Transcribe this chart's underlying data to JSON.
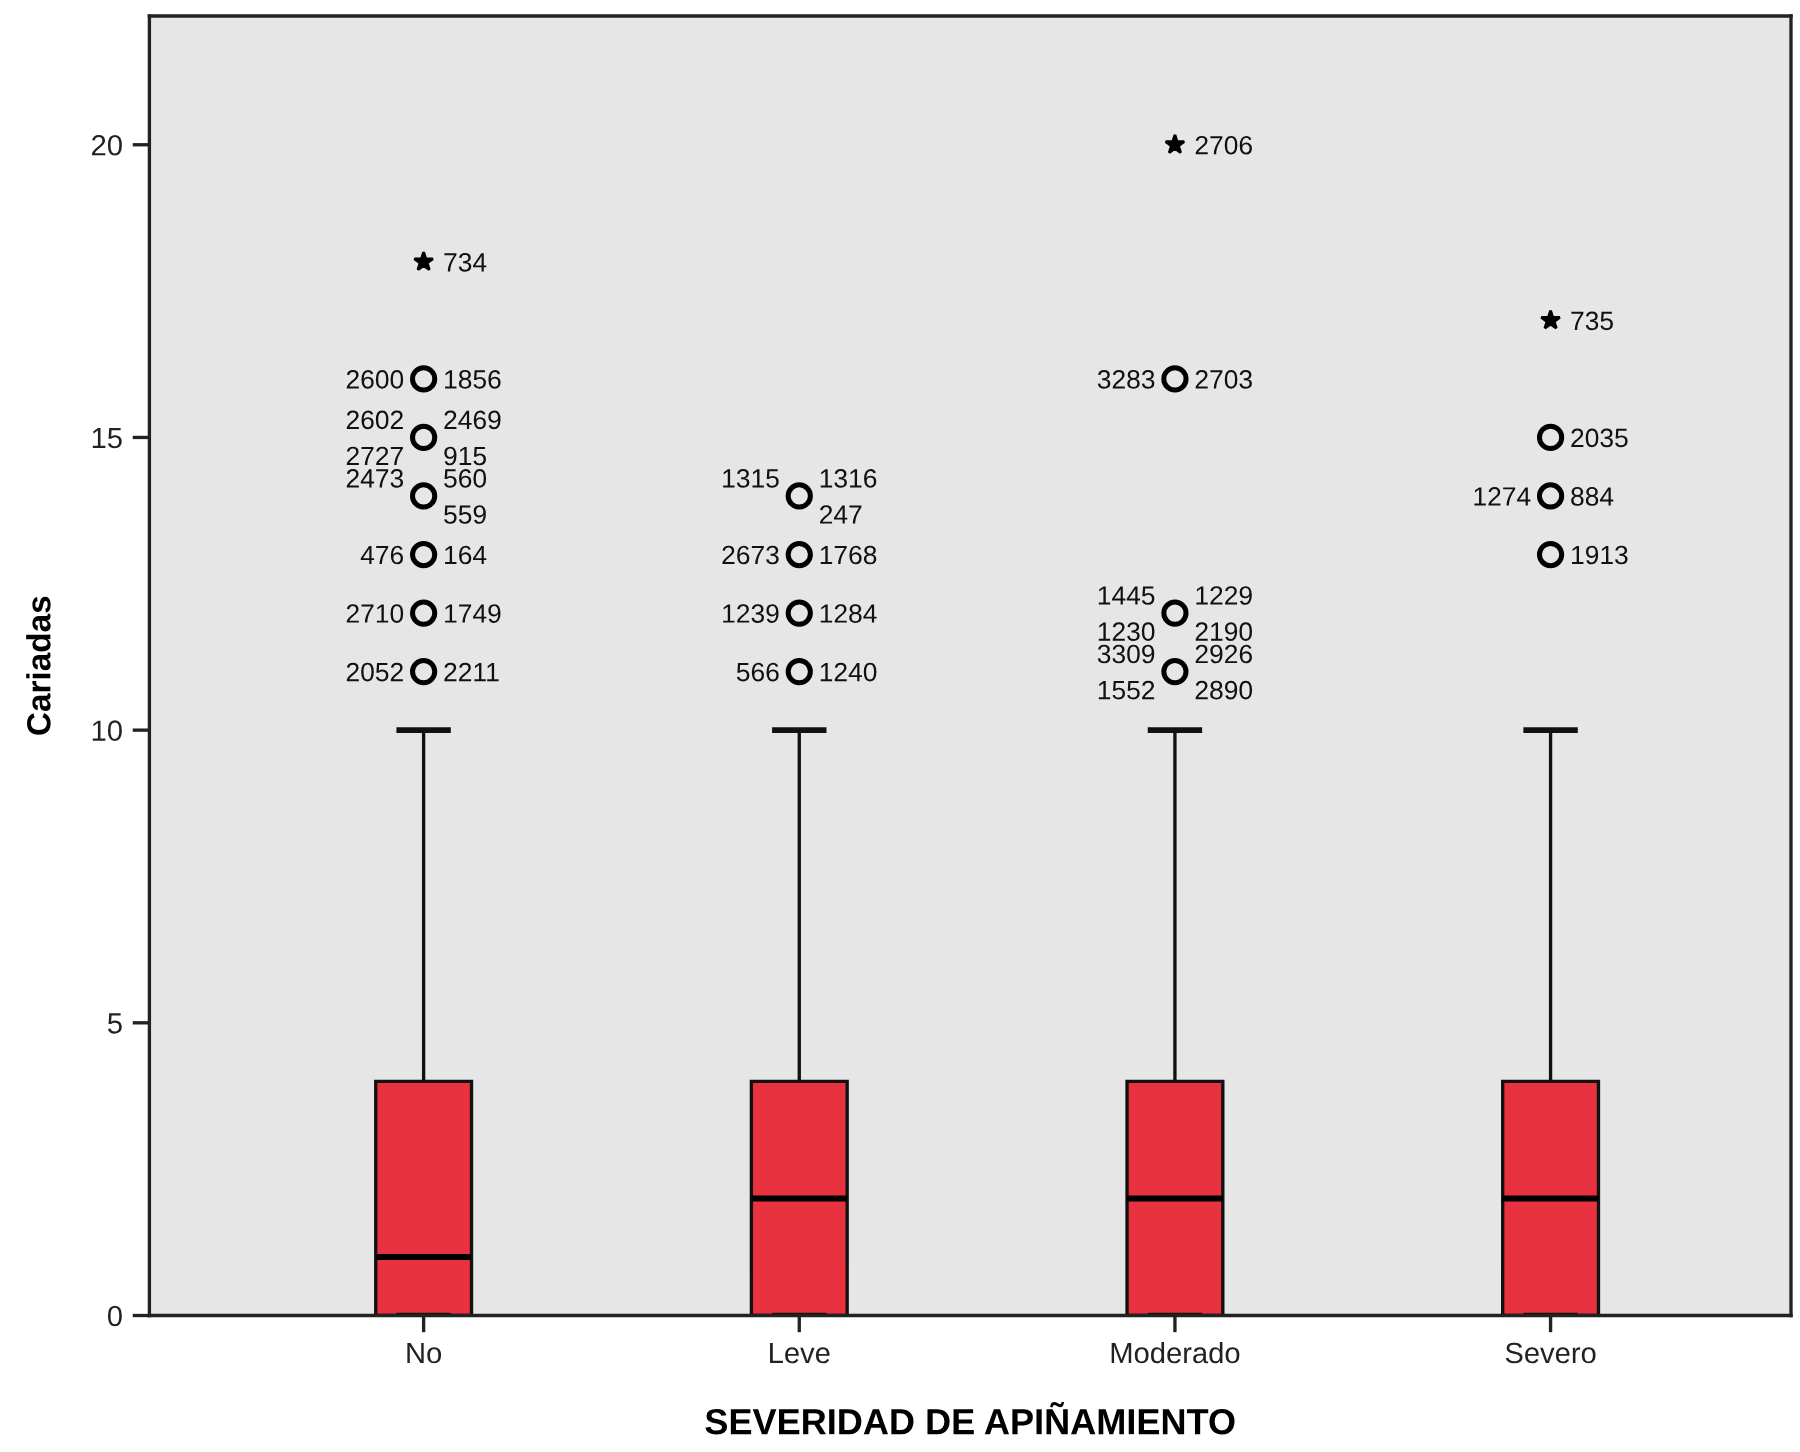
{
  "chart_data": {
    "type": "box",
    "xlabel": "SEVERIDAD DE APIÑAMIENTO",
    "ylabel": "Cariadas",
    "categories": [
      "No",
      "Leve",
      "Moderado",
      "Severo"
    ],
    "ylim": [
      0,
      22.2
    ],
    "yticks": [
      0,
      5,
      10,
      15,
      20
    ],
    "series": [
      {
        "color": "#e8323f",
        "boxes": [
          {
            "low": 0,
            "q1": 0,
            "median": 1,
            "q3": 4,
            "high": 10
          },
          {
            "low": 0,
            "q1": 0,
            "median": 2,
            "q3": 4,
            "high": 10
          },
          {
            "low": 0,
            "q1": 0,
            "median": 2,
            "q3": 4,
            "high": 10
          },
          {
            "low": 0,
            "q1": 0,
            "median": 2,
            "q3": 4,
            "high": 10
          }
        ]
      },
      {
        "type": "scatter",
        "marker": "circle",
        "color": "#000000",
        "x": [
          "No",
          "No",
          "No",
          "No",
          "No",
          "No",
          "Leve",
          "Leve",
          "Leve",
          "Leve",
          "Moderado",
          "Moderado",
          "Moderado",
          "Severo",
          "Severo",
          "Severo"
        ],
        "values": [
          16,
          15,
          14,
          13,
          12,
          11,
          14,
          13,
          12,
          11,
          16,
          12,
          11,
          15,
          14,
          13
        ]
      },
      {
        "type": "scatter",
        "marker": "star",
        "color": "#000000",
        "x": [
          "No",
          "Moderado",
          "Severo"
        ],
        "values": [
          18,
          20,
          17
        ]
      }
    ],
    "annotations": [
      {
        "text": "734",
        "x": "No",
        "y": 18
      },
      {
        "text": "1856",
        "x": "No",
        "y": 16
      },
      {
        "text": "2600",
        "x": "No",
        "y": 16
      },
      {
        "text": "2469",
        "x": "No",
        "y": 15
      },
      {
        "text": "2602",
        "x": "No",
        "y": 15
      },
      {
        "text": "915",
        "x": "No",
        "y": 15
      },
      {
        "text": "2727",
        "x": "No",
        "y": 15
      },
      {
        "text": "560",
        "x": "No",
        "y": 14
      },
      {
        "text": "2473",
        "x": "No",
        "y": 14
      },
      {
        "text": "559",
        "x": "No",
        "y": 14
      },
      {
        "text": "164",
        "x": "No",
        "y": 13
      },
      {
        "text": "476",
        "x": "No",
        "y": 13
      },
      {
        "text": "1749",
        "x": "No",
        "y": 12
      },
      {
        "text": "2710",
        "x": "No",
        "y": 12
      },
      {
        "text": "2211",
        "x": "No",
        "y": 11
      },
      {
        "text": "2052",
        "x": "No",
        "y": 11
      },
      {
        "text": "1316",
        "x": "Leve",
        "y": 14
      },
      {
        "text": "1315",
        "x": "Leve",
        "y": 14
      },
      {
        "text": "247",
        "x": "Leve",
        "y": 14
      },
      {
        "text": "1768",
        "x": "Leve",
        "y": 13
      },
      {
        "text": "2673",
        "x": "Leve",
        "y": 13
      },
      {
        "text": "1284",
        "x": "Leve",
        "y": 12
      },
      {
        "text": "1239",
        "x": "Leve",
        "y": 12
      },
      {
        "text": "1240",
        "x": "Leve",
        "y": 11
      },
      {
        "text": "566",
        "x": "Leve",
        "y": 11
      },
      {
        "text": "2706",
        "x": "Moderado",
        "y": 20
      },
      {
        "text": "2703",
        "x": "Moderado",
        "y": 16
      },
      {
        "text": "3283",
        "x": "Moderado",
        "y": 16
      },
      {
        "text": "1229",
        "x": "Moderado",
        "y": 12
      },
      {
        "text": "1445",
        "x": "Moderado",
        "y": 12
      },
      {
        "text": "2190",
        "x": "Moderado",
        "y": 12
      },
      {
        "text": "1230",
        "x": "Moderado",
        "y": 12
      },
      {
        "text": "2926",
        "x": "Moderado",
        "y": 11
      },
      {
        "text": "3309",
        "x": "Moderado",
        "y": 11
      },
      {
        "text": "2890",
        "x": "Moderado",
        "y": 11
      },
      {
        "text": "1552",
        "x": "Moderado",
        "y": 11
      },
      {
        "text": "735",
        "x": "Severo",
        "y": 17
      },
      {
        "text": "2035",
        "x": "Severo",
        "y": 15
      },
      {
        "text": "884",
        "x": "Severo",
        "y": 14
      },
      {
        "text": "1274",
        "x": "Severo",
        "y": 14
      },
      {
        "text": "1913",
        "x": "Severo",
        "y": 13
      }
    ]
  }
}
